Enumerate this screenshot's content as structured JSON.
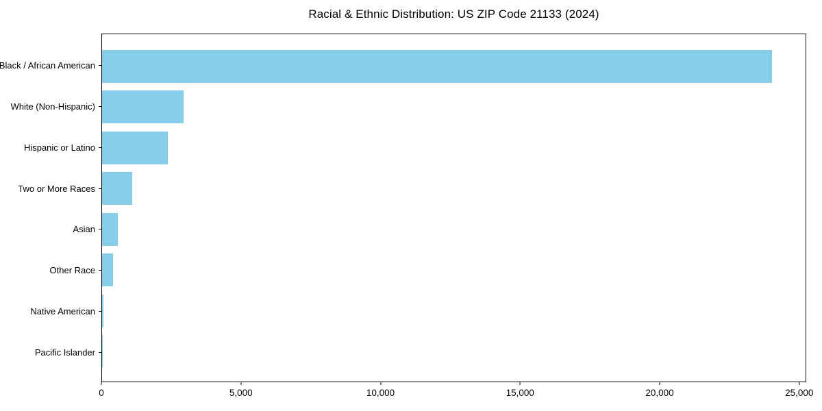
{
  "chart_data": {
    "type": "bar",
    "orientation": "horizontal",
    "title": "Racial & Ethnic Distribution: US ZIP Code 21133 (2024)",
    "xlabel": "",
    "ylabel": "",
    "categories": [
      "Black / African American",
      "White (Non-Hispanic)",
      "Hispanic or Latino",
      "Two or More Races",
      "Asian",
      "Other Race",
      "Native American",
      "Pacific Islander"
    ],
    "values": [
      24050,
      2920,
      2360,
      1080,
      565,
      390,
      40,
      10
    ],
    "xlim": [
      0,
      25250
    ],
    "x_ticks": [
      0,
      5000,
      10000,
      15000,
      20000,
      25000
    ],
    "x_tick_labels": [
      "0",
      "5,000",
      "10,000",
      "15,000",
      "20,000",
      "25,000"
    ],
    "bar_color": "#87CEEB",
    "spine_color": "#000000",
    "background_color": "#ffffff",
    "grid": false,
    "legend": null
  }
}
